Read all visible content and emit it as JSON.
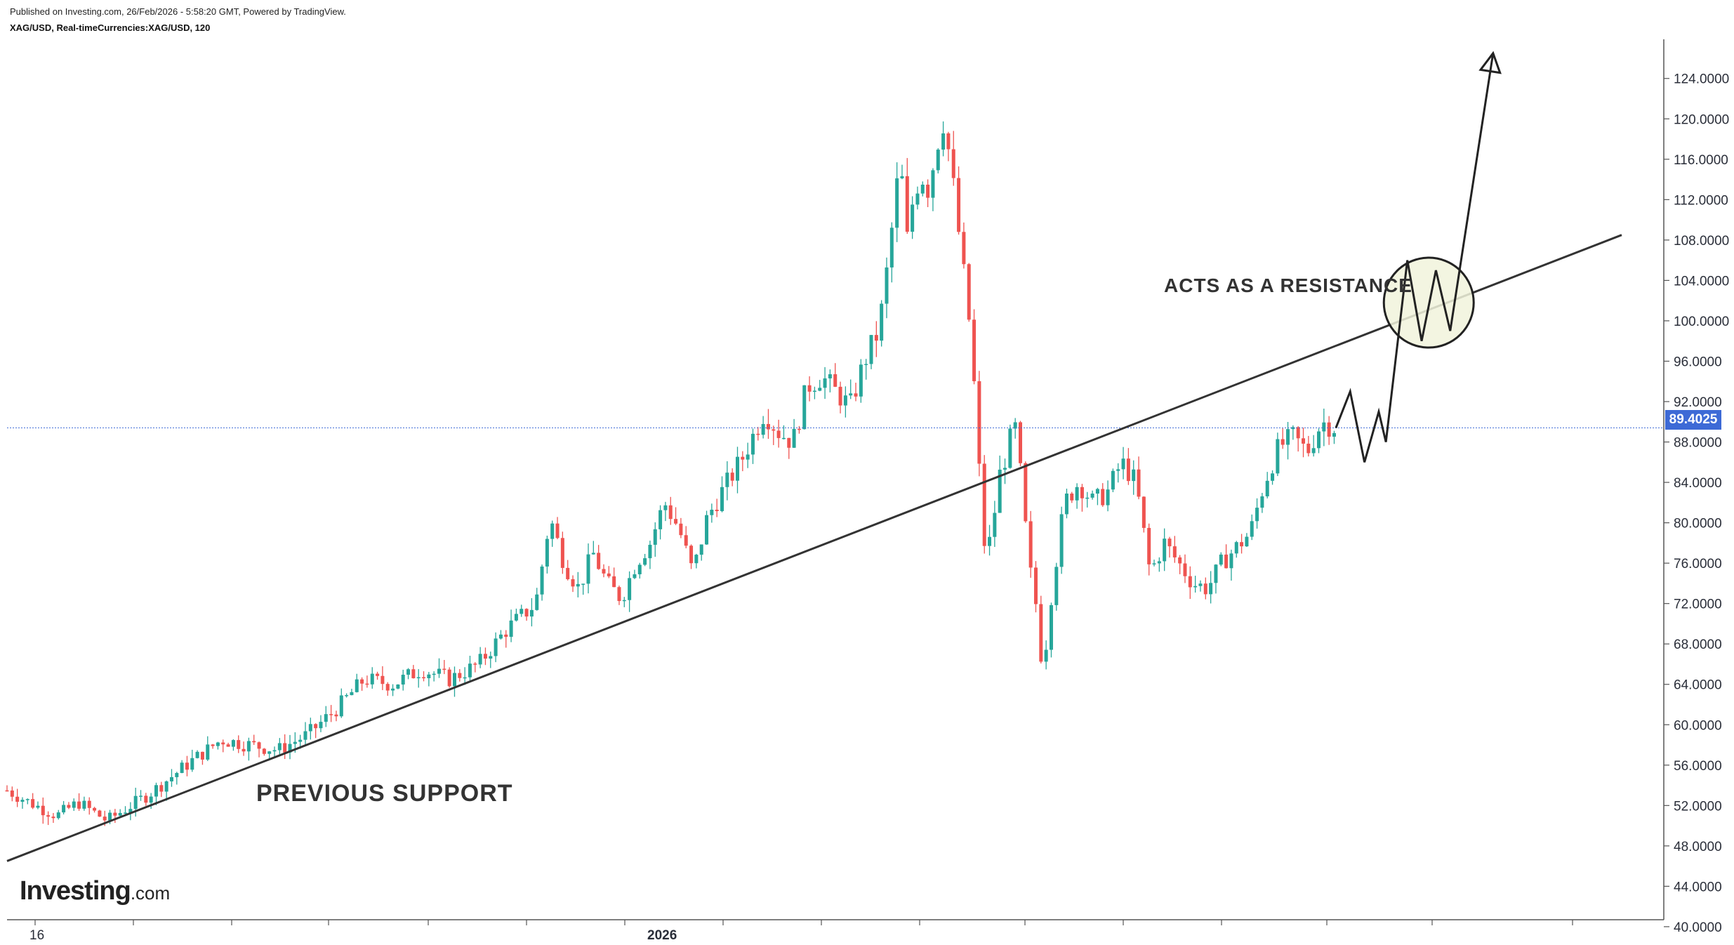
{
  "header": {
    "published": "Published on Investing.com, 26/Feb/2026 - 5:58:20 GMT, Powered by TradingView.",
    "symbol": "XAG/USD, Real-timeCurrencies:XAG/USD, 120"
  },
  "branding": {
    "logo_main": "Investing",
    "logo_suffix": ".com"
  },
  "colors": {
    "up": "#26a69a",
    "down": "#ef5350",
    "trendline": "#333333",
    "price_line": "#3d6ad6",
    "highlight_fill": "#f1f3dc"
  },
  "chart_data": {
    "type": "candlestick",
    "symbol": "XAG/USD",
    "interval": "120",
    "xlabel": "",
    "ylabel": "",
    "ylim": [
      39.0,
      127.0
    ],
    "y_ticks": [
      "124.0000",
      "120.0000",
      "116.0000",
      "112.0000",
      "108.0000",
      "104.0000",
      "100.0000",
      "96.0000",
      "92.0000",
      "88.0000",
      "84.0000",
      "80.0000",
      "76.0000",
      "72.0000",
      "68.0000",
      "64.0000",
      "60.0000",
      "56.0000",
      "52.0000",
      "48.0000",
      "44.0000",
      "40.0000"
    ],
    "x_tick_labels": [
      "16",
      "2026"
    ],
    "last_price": "89.4025",
    "price_path": [
      [
        0,
        53.5
      ],
      [
        4,
        52.0
      ],
      [
        7,
        51.0
      ],
      [
        10,
        52.3
      ],
      [
        14,
        50.5
      ],
      [
        20,
        53.2
      ],
      [
        26,
        56.5
      ],
      [
        30,
        58.5
      ],
      [
        34,
        58.0
      ],
      [
        38,
        57.5
      ],
      [
        42,
        59.0
      ],
      [
        46,
        61.5
      ],
      [
        50,
        64.5
      ],
      [
        54,
        64.0
      ],
      [
        58,
        65.5
      ],
      [
        62,
        64.5
      ],
      [
        66,
        66.0
      ],
      [
        70,
        69.5
      ],
      [
        74,
        72.0
      ],
      [
        76,
        80.5
      ],
      [
        78,
        76.0
      ],
      [
        80,
        73.5
      ],
      [
        82,
        77.0
      ],
      [
        84,
        74.0
      ],
      [
        86,
        72.5
      ],
      [
        88,
        76.0
      ],
      [
        90,
        78.0
      ],
      [
        92,
        82.0
      ],
      [
        94,
        79.5
      ],
      [
        96,
        75.0
      ],
      [
        98,
        80.5
      ],
      [
        100,
        83.0
      ],
      [
        103,
        86.5
      ],
      [
        106,
        91.0
      ],
      [
        108,
        89.0
      ],
      [
        110,
        88.0
      ],
      [
        112,
        93.5
      ],
      [
        114,
        94.5
      ],
      [
        116,
        93.0
      ],
      [
        118,
        91.5
      ],
      [
        120,
        96.0
      ],
      [
        122,
        99.0
      ],
      [
        123,
        104.0
      ],
      [
        124,
        110.0
      ],
      [
        125,
        116.0
      ],
      [
        126,
        108.0
      ],
      [
        127,
        113.0
      ],
      [
        128,
        114.5
      ],
      [
        129,
        113.0
      ],
      [
        130,
        117.0
      ],
      [
        131,
        120.0
      ],
      [
        132,
        116.0
      ],
      [
        133,
        110.0
      ],
      [
        134,
        104.0
      ],
      [
        135,
        98.0
      ],
      [
        136,
        86.0
      ],
      [
        137,
        76.0
      ],
      [
        138,
        80.0
      ],
      [
        139,
        85.0
      ],
      [
        140,
        87.0
      ],
      [
        141,
        90.0
      ],
      [
        142,
        84.0
      ],
      [
        143,
        76.0
      ],
      [
        144,
        72.0
      ],
      [
        145,
        65.0
      ],
      [
        146,
        72.0
      ],
      [
        147,
        77.0
      ],
      [
        148,
        82.0
      ],
      [
        150,
        84.0
      ],
      [
        152,
        82.0
      ],
      [
        154,
        83.0
      ],
      [
        156,
        86.0
      ],
      [
        158,
        84.0
      ],
      [
        160,
        75.0
      ],
      [
        162,
        78.0
      ],
      [
        164,
        76.0
      ],
      [
        166,
        74.0
      ],
      [
        168,
        73.5
      ],
      [
        170,
        76.0
      ],
      [
        172,
        77.5
      ],
      [
        174,
        79.0
      ],
      [
        176,
        84.0
      ],
      [
        178,
        87.5
      ],
      [
        180,
        88.5
      ],
      [
        182,
        87.0
      ],
      [
        184,
        90.0
      ],
      [
        186,
        89.4025
      ]
    ],
    "trendline": {
      "from": [
        0,
        46.5
      ],
      "to": [
        226,
        108.5
      ]
    },
    "projection_path": [
      [
        186,
        89.4
      ],
      [
        188,
        93.0
      ],
      [
        190,
        86.0
      ],
      [
        192,
        91.0
      ],
      [
        193,
        88.0
      ],
      [
        196,
        106.0
      ],
      [
        198,
        98.0
      ],
      [
        200,
        105.0
      ],
      [
        202,
        99.0
      ],
      [
        208,
        126.5
      ]
    ],
    "annotations": [
      {
        "text": "PREVIOUS SUPPORT"
      },
      {
        "text": "ACTS AS A RESISTANCE"
      }
    ],
    "grid": false
  }
}
